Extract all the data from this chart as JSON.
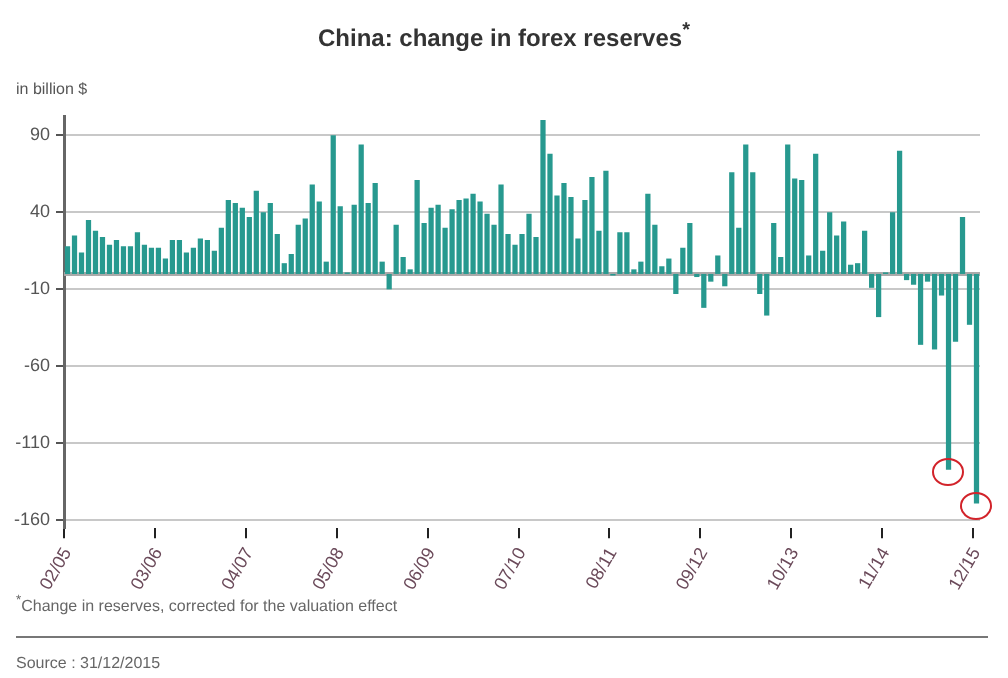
{
  "chart_data": {
    "type": "bar",
    "title": "China: change in forex reserves$^{*}$",
    "ylabel": "in billion $",
    "categories": [
      "02/05",
      null,
      null,
      null,
      null,
      null,
      null,
      null,
      null,
      null,
      null,
      null,
      null,
      "03/06",
      null,
      null,
      null,
      null,
      null,
      null,
      null,
      null,
      null,
      null,
      null,
      null,
      "04/07",
      null,
      null,
      null,
      null,
      null,
      null,
      null,
      null,
      null,
      null,
      null,
      null,
      "05/08",
      null,
      null,
      null,
      null,
      null,
      null,
      null,
      null,
      null,
      null,
      null,
      null,
      "06/09",
      null,
      null,
      null,
      null,
      null,
      null,
      null,
      null,
      null,
      null,
      null,
      null,
      "07/10",
      null,
      null,
      null,
      null,
      null,
      null,
      null,
      null,
      null,
      null,
      null,
      null,
      "08/11",
      null,
      null,
      null,
      null,
      null,
      null,
      null,
      null,
      null,
      null,
      null,
      null,
      "09/12",
      null,
      null,
      null,
      null,
      null,
      null,
      null,
      null,
      null,
      null,
      null,
      null,
      "10/13",
      null,
      null,
      null,
      null,
      null,
      null,
      null,
      null,
      null,
      null,
      null,
      null,
      "11/14",
      null,
      null,
      null,
      null,
      null,
      null,
      null,
      null,
      null,
      null,
      null,
      null,
      "12/15"
    ],
    "values": [
      18,
      25,
      14,
      35,
      28,
      24,
      19,
      22,
      18,
      18,
      27,
      19,
      17,
      17,
      10,
      22,
      22,
      14,
      17,
      23,
      22,
      15,
      30,
      48,
      46,
      43,
      37,
      54,
      40,
      46,
      26,
      7,
      13,
      32,
      36,
      58,
      47,
      8,
      90,
      44,
      1,
      45,
      84,
      46,
      59,
      8,
      -10,
      32,
      11,
      3,
      61,
      33,
      43,
      45,
      30,
      42,
      48,
      49,
      52,
      47,
      39,
      32,
      58,
      26,
      19,
      26,
      39,
      24,
      100,
      78,
      51,
      59,
      50,
      23,
      48,
      63,
      28,
      67,
      -1,
      27,
      27,
      3,
      8,
      52,
      32,
      5,
      10,
      -13,
      17,
      33,
      -2,
      -22,
      -5,
      12,
      -8,
      66,
      30,
      84,
      66,
      -13,
      -27,
      33,
      11,
      84,
      62,
      61,
      12,
      78,
      15,
      40,
      25,
      34,
      6,
      7,
      28,
      -9,
      -28,
      1,
      40,
      80,
      -4,
      -7,
      -46,
      -5,
      -49,
      -14,
      -127,
      -44,
      37,
      -33,
      -149
    ],
    "color": "#27998f",
    "ylim": [
      -165,
      102
    ],
    "yticks": [
      90,
      40,
      -10,
      -60,
      -110,
      -160
    ],
    "grid": "y",
    "annotations": [
      "$^{*}$Change in reserves, corrected for the valuation effect",
      "Source : 31/12/2015"
    ]
  }
}
